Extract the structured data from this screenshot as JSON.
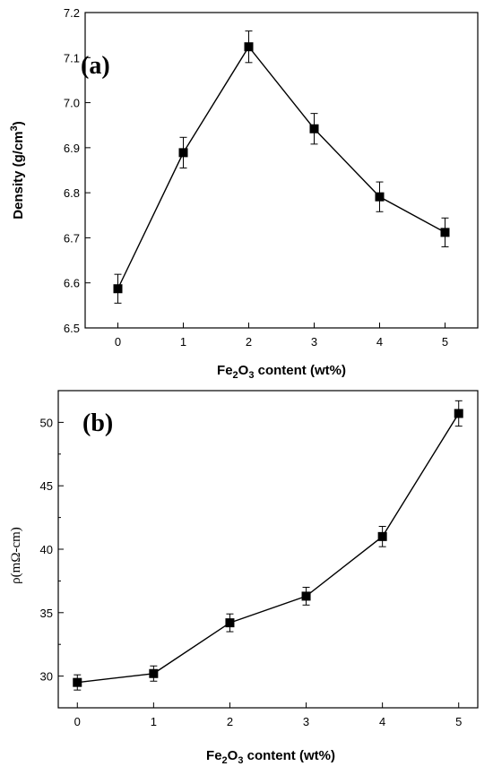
{
  "chart_data": [
    {
      "type": "line",
      "panel_label": "(a)",
      "xlabel": {
        "prefix": "Fe",
        "sub1": "2",
        "mid": "O",
        "sub2": "3",
        "suffix": " content (wt%)"
      },
      "ylabel": {
        "main": "Density (g/cm",
        "sup": "3",
        "end": ")"
      },
      "x": [
        0,
        1,
        2,
        3,
        4,
        5
      ],
      "y": [
        6.587,
        6.889,
        7.124,
        6.942,
        6.791,
        6.712
      ],
      "yerr": [
        0.032,
        0.034,
        0.035,
        0.034,
        0.033,
        0.032
      ],
      "xlim": [
        -0.5,
        5.5
      ],
      "ylim": [
        6.5,
        7.2
      ],
      "xticks": [
        "0",
        "1",
        "2",
        "3",
        "4",
        "5"
      ],
      "yticks": [
        "6.5",
        "6.6",
        "6.7",
        "6.8",
        "6.9",
        "7.0",
        "7.1",
        "7.2"
      ],
      "marker": "square",
      "grid": false,
      "legend": "none"
    },
    {
      "type": "line",
      "panel_label": "(b)",
      "xlabel": {
        "prefix": "Fe",
        "sub1": "2",
        "mid": "O",
        "sub2": "3",
        "suffix": " content (wt%)"
      },
      "ylabel": {
        "main": "ρ(mΩ-cm)"
      },
      "x": [
        0,
        1,
        2,
        3,
        4,
        5
      ],
      "y": [
        29.5,
        30.2,
        34.2,
        36.3,
        41.0,
        50.7
      ],
      "yerr": [
        0.6,
        0.6,
        0.7,
        0.7,
        0.8,
        1.0
      ],
      "xlim": [
        -0.25,
        5.25
      ],
      "ylim": [
        27.5,
        52.5
      ],
      "yticks_values": [
        30,
        35,
        40,
        45,
        50
      ],
      "xticks": [
        "0",
        "1",
        "2",
        "3",
        "4",
        "5"
      ],
      "yticks": [
        "30",
        "35",
        "40",
        "45",
        "50"
      ],
      "marker": "square",
      "grid": false,
      "legend": "none"
    }
  ]
}
